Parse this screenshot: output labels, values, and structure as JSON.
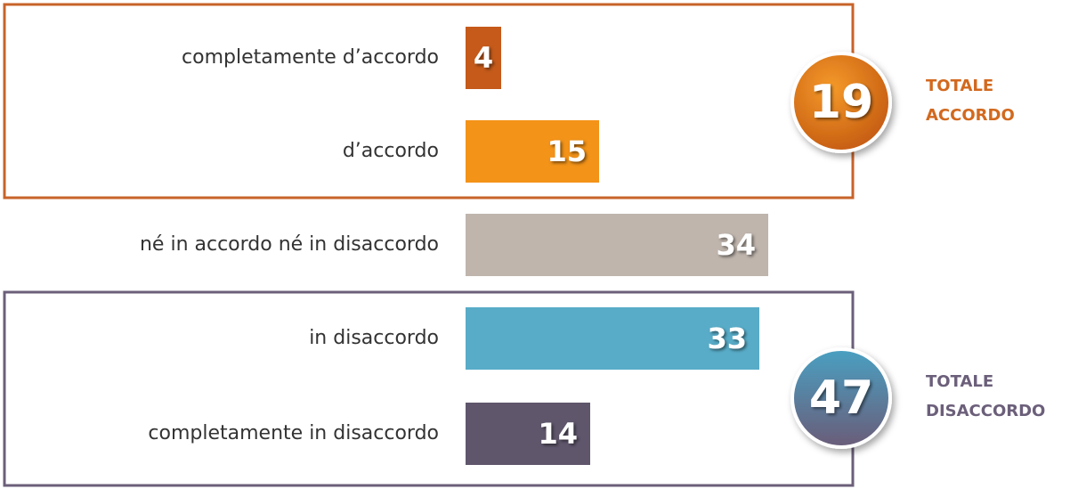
{
  "chart_data": {
    "type": "bar",
    "categories": [
      "completamente d’accordo",
      "d’accordo",
      "né in accordo né in disaccordo",
      "in disaccordo",
      "completamente in disaccordo"
    ],
    "values": [
      4,
      15,
      34,
      33,
      14
    ],
    "colors": [
      "#c55a1a",
      "#f39318",
      "#bfb5ad",
      "#58acc8",
      "#5f566c"
    ],
    "totals": [
      {
        "value": 19,
        "label": [
          "TOTALE",
          "ACCORDO"
        ],
        "color": "#d2691e"
      },
      {
        "value": 47,
        "label": [
          "TOTALE",
          "DISACCORDO"
        ],
        "color": "#6b5f7a"
      }
    ]
  }
}
